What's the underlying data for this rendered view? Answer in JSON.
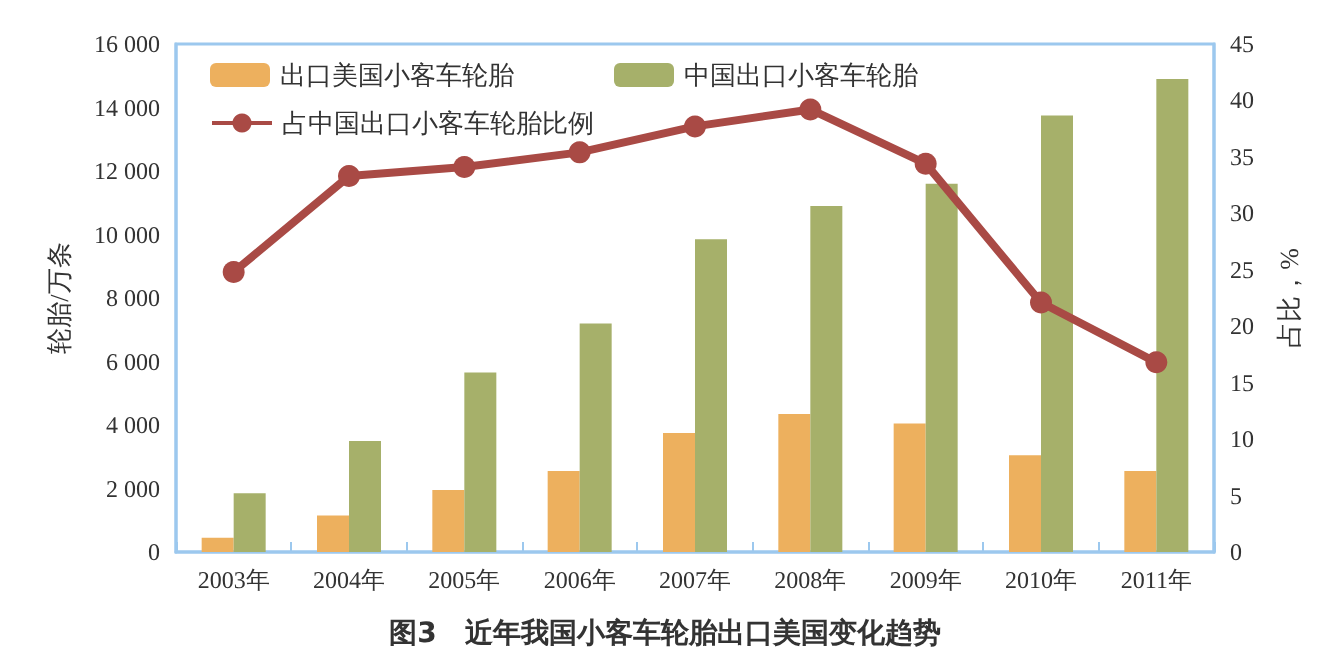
{
  "chart_data": {
    "type": "bar",
    "title": "图3　近年我国小客车轮胎出口美国变化趋势",
    "categories": [
      "2003年",
      "2004年",
      "2005年",
      "2006年",
      "2007年",
      "2008年",
      "2009年",
      "2010年",
      "2011年"
    ],
    "series": [
      {
        "name": "出口美国小客车轮胎",
        "color": "#edb05e",
        "values": [
          450,
          1150,
          1950,
          2550,
          3750,
          4350,
          4050,
          3050,
          2550
        ]
      },
      {
        "name": "中国出口小客车轮胎",
        "color": "#a6b06a",
        "values": [
          1850,
          3500,
          5650,
          7200,
          9850,
          10900,
          11600,
          13750,
          14900
        ]
      },
      {
        "name": "占中国出口小客车轮胎比例",
        "type": "line",
        "axis": "y2",
        "color": "#a94a45",
        "values": [
          24.8,
          33.3,
          34.1,
          35.4,
          37.7,
          39.2,
          34.4,
          22.1,
          16.8
        ]
      }
    ],
    "ylabel": "轮胎/万条",
    "y2label": "占比，%",
    "ylim": [
      0,
      16000
    ],
    "yticks": [
      0,
      {
        "value": 2000,
        "label": "2 000"
      },
      {
        "value": 4000,
        "label": "4 000"
      },
      {
        "value": 6000,
        "label": "6 000"
      },
      {
        "value": 8000,
        "label": "8 000"
      },
      {
        "value": 10000,
        "label": "10 000"
      },
      {
        "value": 12000,
        "label": "12 000"
      },
      {
        "value": 14000,
        "label": "14 000"
      },
      {
        "value": 16000,
        "label": "16 000"
      }
    ],
    "y2lim": [
      0,
      45
    ],
    "y2ticks": [
      0,
      5,
      10,
      15,
      20,
      25,
      30,
      35,
      40,
      45
    ],
    "marker": "circle",
    "legend": "top left",
    "grid": false
  }
}
